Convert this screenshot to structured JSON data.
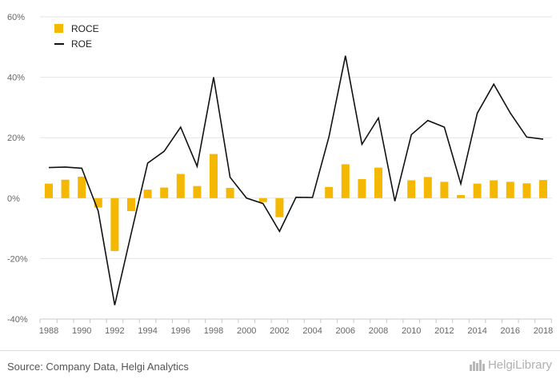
{
  "chart_data": {
    "type": "bar",
    "title": "",
    "xlabel": "",
    "ylabel": "",
    "ylim": [
      -40,
      60
    ],
    "yticks": [
      -40,
      -20,
      0,
      20,
      40,
      60
    ],
    "ytick_labels": [
      "-40%",
      "-20%",
      "0%",
      "20%",
      "40%",
      "60%"
    ],
    "x": [
      1988,
      1989,
      1990,
      1991,
      1992,
      1993,
      1994,
      1995,
      1996,
      1997,
      1998,
      1999,
      2000,
      2001,
      2002,
      2003,
      2004,
      2005,
      2006,
      2007,
      2008,
      2009,
      2010,
      2011,
      2012,
      2013,
      2014,
      2015,
      2016,
      2017,
      2018
    ],
    "xtick_labels": [
      "1988",
      "1990",
      "1992",
      "1994",
      "1996",
      "1998",
      "2000",
      "2002",
      "2004",
      "2006",
      "2008",
      "2010",
      "2012",
      "2014",
      "2016",
      "2018"
    ],
    "legend_position": "top-left",
    "grid": "horizontal",
    "series": [
      {
        "name": "ROCE",
        "type": "bar",
        "color": "#f5b800",
        "values": [
          4.8,
          6.1,
          7.1,
          -3.1,
          -17.5,
          -4.3,
          2.8,
          3.5,
          8.0,
          4.0,
          14.6,
          3.4,
          0.0,
          -1.3,
          -6.3,
          0.0,
          0.0,
          3.7,
          11.2,
          6.3,
          10.1,
          0.0,
          5.9,
          7.0,
          5.4,
          1.0,
          4.8,
          5.9,
          5.4,
          4.9,
          6.0
        ]
      },
      {
        "name": "ROE",
        "type": "line",
        "color": "#111111",
        "values": [
          10.1,
          10.3,
          9.9,
          -4.3,
          -35.4,
          -11.7,
          11.6,
          15.5,
          23.5,
          10.5,
          40.0,
          6.9,
          0.0,
          -1.8,
          -11.0,
          0.3,
          0.2,
          20.3,
          47.1,
          17.8,
          26.5,
          -1.0,
          21.0,
          25.7,
          23.5,
          4.7,
          28.1,
          37.7,
          28.2,
          20.2,
          19.5
        ]
      }
    ]
  },
  "footer": {
    "source": "Source: Company Data, Helgi Analytics",
    "brand": "HelgiLibrary"
  }
}
